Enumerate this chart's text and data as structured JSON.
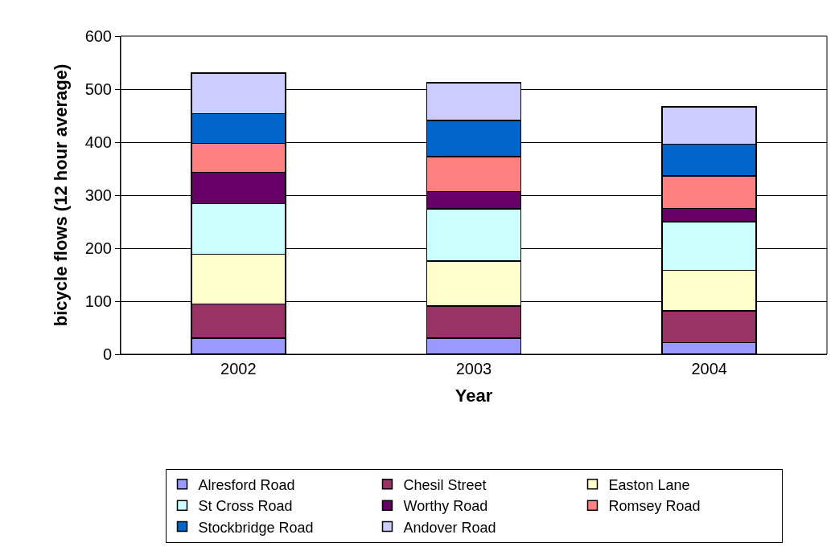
{
  "chart_data": {
    "type": "bar",
    "stacked": true,
    "xlabel": "Year",
    "ylabel": "bicycle flows (12 hour average)",
    "categories": [
      "2002",
      "2003",
      "2004"
    ],
    "ylim": [
      0,
      600
    ],
    "yticks": [
      0,
      100,
      200,
      300,
      400,
      500,
      600
    ],
    "grid": "y",
    "legend": "bottom",
    "series": [
      {
        "name": "Alresford Road",
        "color": "#9999ff",
        "values": [
          30,
          30,
          22
        ]
      },
      {
        "name": "Chesil Street",
        "color": "#993366",
        "values": [
          65,
          61,
          60
        ]
      },
      {
        "name": "Easton Lane",
        "color": "#ffffcc",
        "values": [
          94,
          85,
          76
        ]
      },
      {
        "name": "St Cross Road",
        "color": "#ccffff",
        "values": [
          95,
          98,
          92
        ]
      },
      {
        "name": "Worthy Road",
        "color": "#660066",
        "values": [
          59,
          33,
          25
        ]
      },
      {
        "name": "Romsey Road",
        "color": "#ff8080",
        "values": [
          55,
          66,
          61
        ]
      },
      {
        "name": "Stockbridge Road",
        "color": "#0066cc",
        "values": [
          56,
          68,
          60
        ]
      },
      {
        "name": "Andover Road",
        "color": "#ccccff",
        "values": [
          76,
          71,
          71
        ]
      }
    ]
  }
}
